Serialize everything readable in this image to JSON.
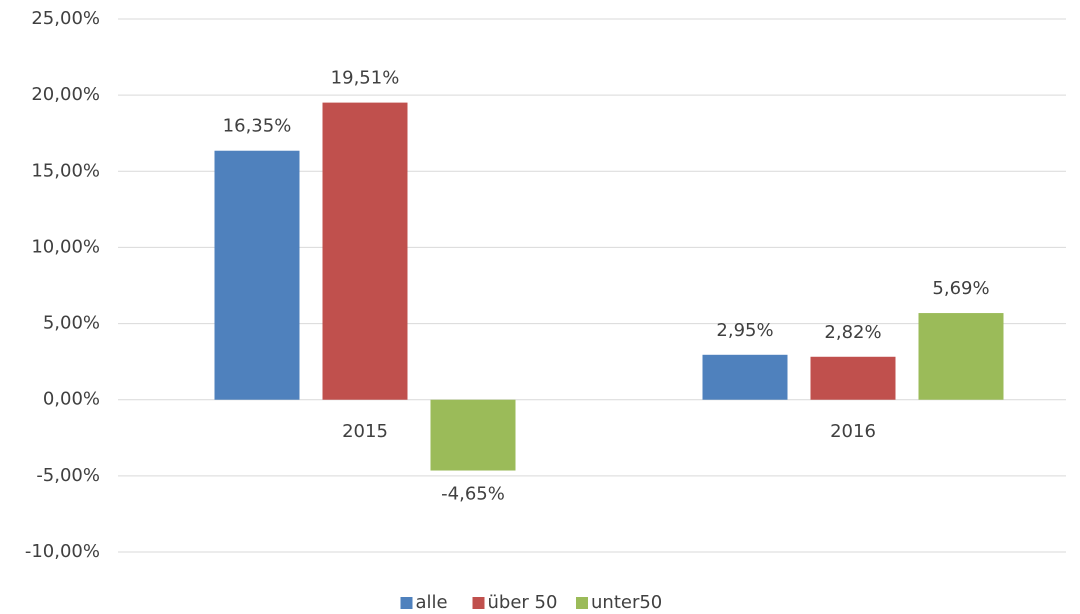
{
  "chart_data": {
    "type": "bar",
    "categories": [
      "2015",
      "2016"
    ],
    "series": [
      {
        "name": "alle",
        "color": "#4f81bd",
        "values": [
          16.35,
          2.95
        ],
        "value_labels": [
          "16,35%",
          "2,95%"
        ]
      },
      {
        "name": "über 50",
        "color": "#c0504d",
        "values": [
          19.51,
          2.82
        ],
        "value_labels": [
          "19,51%",
          "2,82%"
        ]
      },
      {
        "name": "unter50",
        "color": "#9bbb59",
        "values": [
          -4.65,
          5.69
        ],
        "value_labels": [
          "-4,65%",
          "5,69%"
        ]
      }
    ],
    "ylim": [
      -10,
      25
    ],
    "yticks": [
      {
        "value": -10,
        "label": "-10,00%"
      },
      {
        "value": -5,
        "label": "-5,00%"
      },
      {
        "value": 0,
        "label": "0,00%"
      },
      {
        "value": 5,
        "label": "5,00%"
      },
      {
        "value": 10,
        "label": "10,00%"
      },
      {
        "value": 15,
        "label": "15,00%"
      },
      {
        "value": 20,
        "label": "20,00%"
      },
      {
        "value": 25,
        "label": "25,00%"
      }
    ],
    "grid": true,
    "legend": "bottom"
  }
}
